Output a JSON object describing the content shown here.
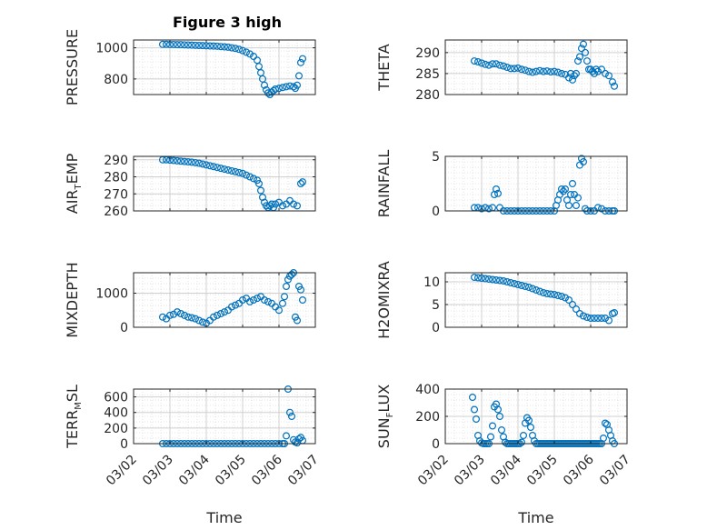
{
  "figure_title": "Figure 3 high",
  "x_tick_labels": [
    "03/02",
    "03/03",
    "03/04",
    "03/05",
    "03/06",
    "03/07"
  ],
  "chart_data": [
    {
      "type": "scatter",
      "id": "pressure",
      "ylabel_main": "PRESSURE",
      "ylabel_sub": "",
      "ylabel_tail": "",
      "title": "Figure 3 high",
      "xlabel": "",
      "xlim": [
        0,
        5
      ],
      "ylim": [
        700,
        1050
      ],
      "yticks": [
        800,
        1000
      ],
      "grid": true,
      "color": "#0072BD",
      "x": [
        0.8,
        0.9,
        1.0,
        1.1,
        1.2,
        1.3,
        1.4,
        1.5,
        1.6,
        1.7,
        1.8,
        1.9,
        2.0,
        2.1,
        2.2,
        2.3,
        2.4,
        2.5,
        2.6,
        2.7,
        2.8,
        2.9,
        3.0,
        3.1,
        3.2,
        3.3,
        3.4,
        3.45,
        3.5,
        3.55,
        3.6,
        3.65,
        3.7,
        3.75,
        3.8,
        3.85,
        3.9,
        4.0,
        4.1,
        4.2,
        4.3,
        4.4,
        4.45,
        4.5,
        4.55,
        4.6,
        4.65
      ],
      "y": [
        1022,
        1022,
        1021,
        1021,
        1020,
        1020,
        1019,
        1018,
        1017,
        1016,
        1015,
        1014,
        1013,
        1012,
        1011,
        1010,
        1008,
        1006,
        1004,
        1000,
        996,
        990,
        982,
        972,
        960,
        945,
        920,
        880,
        840,
        800,
        760,
        730,
        710,
        700,
        715,
        725,
        735,
        740,
        745,
        750,
        755,
        750,
        740,
        760,
        820,
        905,
        930
      ]
    },
    {
      "type": "scatter",
      "id": "theta",
      "ylabel_main": "THETA",
      "ylabel_sub": "",
      "ylabel_tail": "",
      "xlabel": "",
      "xlim": [
        0,
        5
      ],
      "ylim": [
        280,
        293
      ],
      "yticks": [
        280,
        285,
        290
      ],
      "grid": true,
      "color": "#0072BD",
      "x": [
        0.8,
        0.9,
        1.0,
        1.1,
        1.2,
        1.3,
        1.4,
        1.5,
        1.6,
        1.7,
        1.8,
        1.9,
        2.0,
        2.1,
        2.2,
        2.3,
        2.4,
        2.5,
        2.6,
        2.7,
        2.8,
        2.9,
        3.0,
        3.1,
        3.2,
        3.3,
        3.4,
        3.45,
        3.5,
        3.55,
        3.6,
        3.65,
        3.7,
        3.75,
        3.8,
        3.85,
        3.9,
        3.95,
        4.0,
        4.05,
        4.1,
        4.15,
        4.2,
        4.3,
        4.4,
        4.5,
        4.6,
        4.65
      ],
      "y": [
        288,
        287.8,
        287.5,
        287.2,
        287,
        287.3,
        287.3,
        287,
        286.8,
        286.5,
        286.2,
        286.2,
        286.3,
        286,
        285.8,
        285.5,
        285.3,
        285.5,
        285.7,
        285.5,
        285.6,
        285.4,
        285.5,
        285.3,
        285,
        284.8,
        284,
        285,
        283.5,
        284.5,
        285,
        288,
        289,
        291,
        292,
        290,
        288,
        286,
        286,
        285.5,
        285,
        286,
        285.5,
        286,
        285,
        284.5,
        283,
        282
      ]
    },
    {
      "type": "scatter",
      "id": "air_temp",
      "ylabel_main": "AIR",
      "ylabel_sub": "T",
      "ylabel_tail": "EMP",
      "xlabel": "",
      "xlim": [
        0,
        5
      ],
      "ylim": [
        260,
        292
      ],
      "yticks": [
        260,
        270,
        280,
        290
      ],
      "grid": true,
      "color": "#0072BD",
      "x": [
        0.8,
        0.9,
        1.0,
        1.1,
        1.2,
        1.3,
        1.4,
        1.5,
        1.6,
        1.7,
        1.8,
        1.9,
        2.0,
        2.1,
        2.2,
        2.3,
        2.4,
        2.5,
        2.6,
        2.7,
        2.8,
        2.9,
        3.0,
        3.1,
        3.2,
        3.3,
        3.4,
        3.45,
        3.5,
        3.55,
        3.6,
        3.65,
        3.7,
        3.75,
        3.8,
        3.85,
        3.9,
        4.0,
        4.1,
        4.2,
        4.3,
        4.4,
        4.5,
        4.6,
        4.65
      ],
      "y": [
        290,
        290,
        289.8,
        289.6,
        289.4,
        289.2,
        289,
        288.8,
        288.6,
        288.3,
        288,
        287.5,
        287,
        286.5,
        286,
        285.5,
        285,
        284.5,
        284,
        283.5,
        283,
        282.5,
        282,
        281,
        280,
        279,
        278,
        276,
        272,
        268,
        265,
        263,
        262,
        263,
        264,
        262,
        264,
        265,
        263,
        264,
        266,
        264,
        263,
        276,
        277
      ]
    },
    {
      "type": "scatter",
      "id": "rainfall",
      "ylabel_main": "RAINFALL",
      "ylabel_sub": "",
      "ylabel_tail": "",
      "xlabel": "",
      "xlim": [
        0,
        5
      ],
      "ylim": [
        0,
        5
      ],
      "yticks": [
        0,
        5
      ],
      "grid": true,
      "color": "#0072BD",
      "x": [
        0.8,
        0.9,
        1.0,
        1.1,
        1.2,
        1.3,
        1.35,
        1.4,
        1.45,
        1.5,
        1.6,
        1.7,
        1.8,
        1.9,
        2.0,
        2.1,
        2.2,
        2.3,
        2.4,
        2.5,
        2.6,
        2.7,
        2.8,
        2.9,
        3.0,
        3.05,
        3.1,
        3.15,
        3.2,
        3.25,
        3.3,
        3.35,
        3.4,
        3.45,
        3.5,
        3.55,
        3.6,
        3.65,
        3.7,
        3.75,
        3.8,
        3.85,
        3.9,
        4.0,
        4.1,
        4.2,
        4.3,
        4.4,
        4.5,
        4.6,
        4.65
      ],
      "y": [
        0.3,
        0.3,
        0.2,
        0.3,
        0.2,
        0.3,
        1.5,
        2.0,
        1.6,
        0.3,
        0,
        0,
        0,
        0,
        0,
        0,
        0,
        0,
        0,
        0,
        0,
        0,
        0,
        0,
        0,
        0.5,
        1.0,
        1.5,
        2.0,
        1.8,
        2.0,
        1.0,
        0.5,
        1.5,
        2.5,
        1.5,
        0.5,
        1.2,
        4.2,
        4.8,
        4.5,
        0.2,
        0,
        0,
        0,
        0.3,
        0.2,
        0,
        0,
        0,
        0
      ]
    },
    {
      "type": "scatter",
      "id": "mixdepth",
      "ylabel_main": "MIXDEPTH",
      "ylabel_sub": "",
      "ylabel_tail": "",
      "xlabel": "",
      "xlim": [
        0,
        5
      ],
      "ylim": [
        0,
        1600
      ],
      "yticks": [
        0,
        1000
      ],
      "grid": true,
      "color": "#0072BD",
      "x": [
        0.8,
        0.9,
        1.0,
        1.1,
        1.2,
        1.3,
        1.4,
        1.5,
        1.6,
        1.7,
        1.8,
        1.9,
        2.0,
        2.1,
        2.2,
        2.3,
        2.4,
        2.5,
        2.6,
        2.7,
        2.8,
        2.9,
        3.0,
        3.1,
        3.2,
        3.3,
        3.4,
        3.5,
        3.6,
        3.7,
        3.8,
        3.9,
        4.0,
        4.1,
        4.15,
        4.2,
        4.25,
        4.3,
        4.35,
        4.4,
        4.45,
        4.5,
        4.55,
        4.6,
        4.65
      ],
      "y": [
        300,
        250,
        350,
        380,
        450,
        400,
        350,
        300,
        280,
        250,
        200,
        150,
        120,
        200,
        300,
        350,
        400,
        450,
        500,
        600,
        650,
        700,
        800,
        850,
        750,
        800,
        850,
        900,
        800,
        750,
        700,
        600,
        500,
        700,
        900,
        1200,
        1400,
        1500,
        1550,
        1600,
        300,
        200,
        1200,
        1100,
        800
      ]
    },
    {
      "type": "scatter",
      "id": "h2o_mixra",
      "ylabel_main": "H2OMIXRA",
      "ylabel_sub": "",
      "ylabel_tail": "",
      "xlabel": "",
      "xlim": [
        0,
        5
      ],
      "ylim": [
        0,
        12
      ],
      "yticks": [
        0,
        5,
        10
      ],
      "grid": true,
      "color": "#0072BD",
      "x": [
        0.8,
        0.9,
        1.0,
        1.1,
        1.2,
        1.3,
        1.4,
        1.5,
        1.6,
        1.7,
        1.8,
        1.9,
        2.0,
        2.1,
        2.2,
        2.3,
        2.4,
        2.5,
        2.6,
        2.7,
        2.8,
        2.9,
        3.0,
        3.1,
        3.2,
        3.3,
        3.4,
        3.5,
        3.6,
        3.7,
        3.8,
        3.9,
        4.0,
        4.1,
        4.2,
        4.3,
        4.4,
        4.5,
        4.6,
        4.65
      ],
      "y": [
        11,
        10.9,
        10.8,
        10.7,
        10.6,
        10.5,
        10.4,
        10.3,
        10.2,
        10,
        9.8,
        9.6,
        9.4,
        9.2,
        9,
        8.8,
        8.5,
        8.2,
        7.9,
        7.6,
        7.4,
        7.3,
        7.2,
        7,
        6.8,
        6.5,
        6,
        5,
        4,
        3,
        2.5,
        2.2,
        2,
        2,
        2,
        2,
        2,
        1.5,
        3,
        3.2
      ]
    },
    {
      "type": "scatter",
      "id": "terr_msl",
      "ylabel_main": "TERR",
      "ylabel_sub": "M",
      "ylabel_tail": "SL",
      "xlabel": "Time",
      "xlim": [
        0,
        5
      ],
      "ylim": [
        0,
        700
      ],
      "yticks": [
        0,
        200,
        400,
        600
      ],
      "grid": true,
      "color": "#0072BD",
      "x": [
        0.8,
        0.9,
        1.0,
        1.1,
        1.2,
        1.3,
        1.4,
        1.5,
        1.6,
        1.7,
        1.8,
        1.9,
        2.0,
        2.1,
        2.2,
        2.3,
        2.4,
        2.5,
        2.6,
        2.7,
        2.8,
        2.9,
        3.0,
        3.1,
        3.2,
        3.3,
        3.4,
        3.5,
        3.6,
        3.7,
        3.8,
        3.9,
        4.0,
        4.1,
        4.15,
        4.2,
        4.25,
        4.3,
        4.35,
        4.4,
        4.45,
        4.5,
        4.55,
        4.6,
        4.65
      ],
      "y": [
        0,
        0,
        0,
        0,
        0,
        0,
        0,
        0,
        0,
        0,
        0,
        0,
        0,
        0,
        0,
        0,
        0,
        0,
        0,
        0,
        0,
        0,
        0,
        0,
        0,
        0,
        0,
        0,
        0,
        0,
        0,
        0,
        0,
        0,
        0,
        100,
        700,
        400,
        350,
        50,
        20,
        10,
        60,
        80,
        40
      ]
    },
    {
      "type": "scatter",
      "id": "sun_flux",
      "ylabel_main": "SUN",
      "ylabel_sub": "F",
      "ylabel_tail": "LUX",
      "xlabel": "Time",
      "xlim": [
        0,
        5
      ],
      "ylim": [
        0,
        400
      ],
      "yticks": [
        0,
        200,
        400
      ],
      "grid": true,
      "color": "#0072BD",
      "x": [
        0.75,
        0.8,
        0.85,
        0.9,
        0.95,
        1.0,
        1.05,
        1.1,
        1.15,
        1.2,
        1.25,
        1.3,
        1.35,
        1.4,
        1.45,
        1.5,
        1.55,
        1.6,
        1.65,
        1.7,
        1.75,
        1.8,
        1.85,
        1.9,
        1.95,
        2.0,
        2.05,
        2.1,
        2.15,
        2.2,
        2.25,
        2.3,
        2.35,
        2.4,
        2.45,
        2.5,
        2.55,
        2.6,
        2.65,
        2.7,
        2.75,
        2.8,
        2.85,
        2.9,
        2.95,
        3.0,
        3.05,
        3.1,
        3.15,
        3.2,
        3.25,
        3.3,
        3.35,
        3.4,
        3.45,
        3.5,
        3.55,
        3.6,
        3.65,
        3.7,
        3.75,
        3.8,
        3.85,
        3.9,
        3.95,
        4.0,
        4.05,
        4.1,
        4.15,
        4.2,
        4.25,
        4.3,
        4.35,
        4.4,
        4.45,
        4.5,
        4.55,
        4.6,
        4.65
      ],
      "y": [
        340,
        250,
        180,
        60,
        20,
        5,
        0,
        0,
        0,
        0,
        50,
        130,
        270,
        290,
        250,
        200,
        100,
        50,
        10,
        0,
        0,
        0,
        0,
        0,
        0,
        0,
        0,
        10,
        60,
        150,
        190,
        170,
        120,
        60,
        20,
        0,
        0,
        0,
        0,
        0,
        0,
        0,
        0,
        0,
        0,
        0,
        0,
        0,
        0,
        0,
        0,
        0,
        0,
        0,
        0,
        0,
        0,
        0,
        0,
        0,
        0,
        0,
        0,
        0,
        0,
        0,
        0,
        0,
        0,
        0,
        0,
        0,
        40,
        150,
        140,
        100,
        60,
        20,
        0
      ]
    }
  ]
}
